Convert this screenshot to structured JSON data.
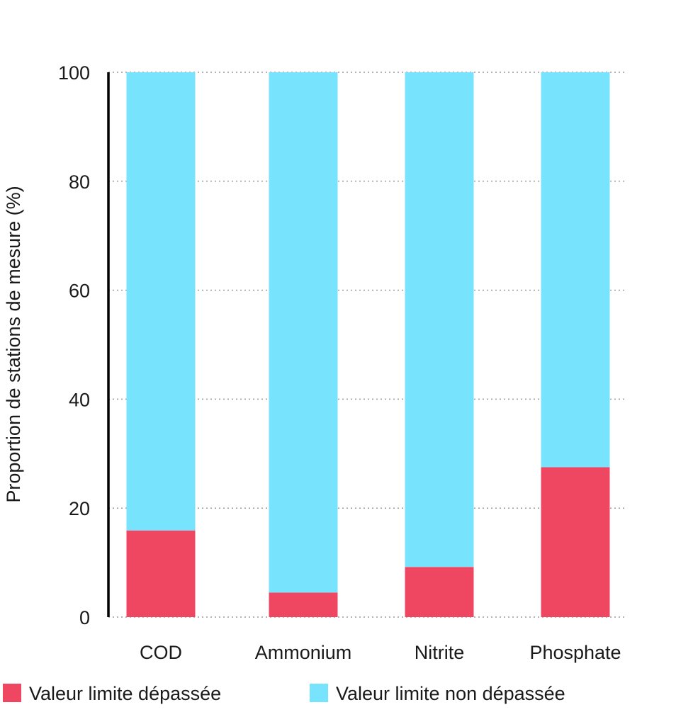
{
  "chart_data": {
    "type": "bar",
    "stacked": true,
    "title": "",
    "xlabel": "",
    "ylabel": "Proportion de stations de mesure (%)",
    "ylim": [
      0,
      100
    ],
    "yticks": [
      0,
      20,
      40,
      60,
      80,
      100
    ],
    "grid": "dotted horizontal",
    "legend_position": "bottom",
    "categories": [
      "COD",
      "Ammonium",
      "Nitrite",
      "Phosphate"
    ],
    "series": [
      {
        "name": "Valeur limite dépassée",
        "color": "#ef4762",
        "values": [
          15.9,
          4.5,
          9.2,
          27.5
        ]
      },
      {
        "name": "Valeur limite non dépassée",
        "color": "#77e3fd",
        "values": [
          84.1,
          95.5,
          90.8,
          72.5
        ]
      }
    ]
  }
}
